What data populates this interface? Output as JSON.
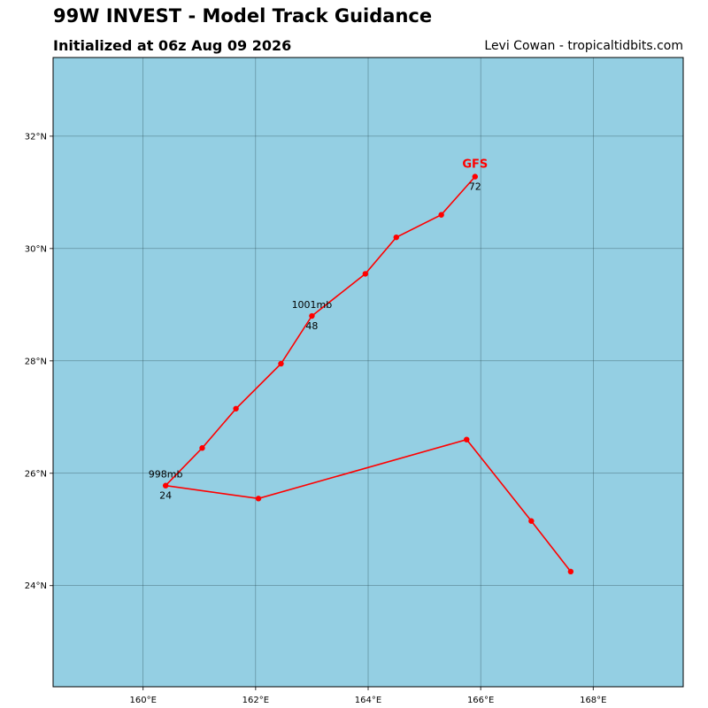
{
  "header": {
    "title": "99W INVEST - Model Track Guidance",
    "subtitle": "Initialized at 06z Aug 09 2026",
    "credit": "Levi Cowan - tropicaltidbits.com"
  },
  "map": {
    "ocean_color": "#94CFE3",
    "grid_color": "#2a4a52",
    "track_color": "#ff0000",
    "lon_range": [
      158.4,
      169.6
    ],
    "lat_range": [
      22.2,
      33.4
    ],
    "x_ticks": [
      {
        "value": 160,
        "label": "160°E"
      },
      {
        "value": 162,
        "label": "162°E"
      },
      {
        "value": 164,
        "label": "164°E"
      },
      {
        "value": 166,
        "label": "166°E"
      },
      {
        "value": 168,
        "label": "168°E"
      }
    ],
    "y_ticks": [
      {
        "value": 24,
        "label": "24°N"
      },
      {
        "value": 26,
        "label": "26°N"
      },
      {
        "value": 28,
        "label": "28°N"
      },
      {
        "value": 30,
        "label": "30°N"
      },
      {
        "value": 32,
        "label": "32°N"
      }
    ]
  },
  "chart_data": {
    "type": "line",
    "series": [
      {
        "name": "GFS",
        "points": [
          {
            "lon": 167.6,
            "lat": 24.25
          },
          {
            "lon": 166.9,
            "lat": 25.15
          },
          {
            "lon": 165.75,
            "lat": 26.6
          },
          {
            "lon": 162.05,
            "lat": 25.55
          },
          {
            "lon": 160.4,
            "lat": 25.78,
            "hour": "24",
            "pressure": "998mb"
          },
          {
            "lon": 161.05,
            "lat": 26.45
          },
          {
            "lon": 161.65,
            "lat": 27.15
          },
          {
            "lon": 162.45,
            "lat": 27.95
          },
          {
            "lon": 163.0,
            "lat": 28.8,
            "hour": "48",
            "pressure": "1001mb"
          },
          {
            "lon": 163.95,
            "lat": 29.55
          },
          {
            "lon": 164.5,
            "lat": 30.2
          },
          {
            "lon": 165.3,
            "lat": 30.6
          },
          {
            "lon": 165.9,
            "lat": 31.28,
            "hour": "72"
          }
        ]
      }
    ]
  }
}
